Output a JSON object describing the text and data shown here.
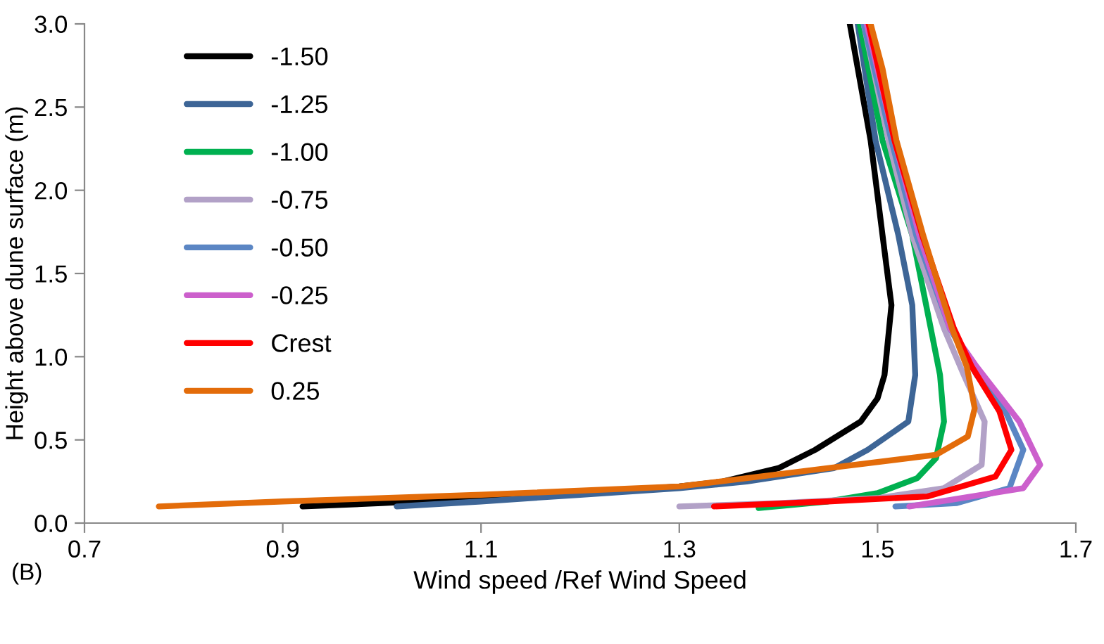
{
  "chart_data": {
    "type": "line",
    "xlabel": "Wind speed /Ref Wind Speed",
    "ylabel": "Height above dune surface (m)",
    "annotations": [
      "(B)"
    ],
    "xlim": [
      0.7,
      1.7
    ],
    "xticks": [
      0.7,
      0.9,
      1.1,
      1.3,
      1.5,
      1.7
    ],
    "ylim": [
      0,
      3
    ],
    "yticks": [
      {
        "value": 0,
        "label": "0.0"
      },
      0.5,
      {
        "value": 1,
        "label": "1.0"
      },
      1.5,
      {
        "value": 2,
        "label": "2.0"
      },
      2.5,
      {
        "value": 3,
        "label": "3.0"
      }
    ],
    "grid": false,
    "legend": "top left",
    "marker": "none",
    "line_style": "solid",
    "series": [
      {
        "name": "-1.50",
        "color": "#000000",
        "x": [
          0.92,
          1.0,
          1.1,
          1.2,
          1.3,
          1.344,
          1.4,
          1.437,
          1.483,
          1.5,
          1.507,
          1.514,
          1.505,
          1.493,
          1.472
        ],
        "values": [
          0.1,
          0.12,
          0.15,
          0.18,
          0.22,
          0.25,
          0.33,
          0.44,
          0.61,
          0.75,
          0.89,
          1.31,
          1.73,
          2.3,
          3.0
        ]
      },
      {
        "name": "-1.25",
        "color": "#3d6596",
        "x": [
          1.015,
          1.1,
          1.2,
          1.3,
          1.368,
          1.456,
          1.49,
          1.531,
          1.538,
          1.535,
          1.521,
          1.498,
          1.48
        ],
        "values": [
          0.1,
          0.13,
          0.17,
          0.21,
          0.25,
          0.33,
          0.44,
          0.61,
          0.89,
          1.31,
          1.73,
          2.3,
          3.0
        ]
      },
      {
        "name": "-1.00",
        "color": "#00b050",
        "x": [
          1.38,
          1.45,
          1.5,
          1.54,
          1.559,
          1.567,
          1.563,
          1.549,
          1.535,
          1.505,
          1.482
        ],
        "values": [
          0.09,
          0.13,
          0.18,
          0.27,
          0.39,
          0.61,
          0.89,
          1.31,
          1.73,
          2.3,
          3.0
        ]
      },
      {
        "name": "-0.75",
        "color": "#b2a1c7",
        "x": [
          1.3,
          1.4,
          1.5,
          1.567,
          1.605,
          1.608,
          1.587,
          1.567,
          1.535,
          1.511,
          1.486
        ],
        "values": [
          0.1,
          0.12,
          0.15,
          0.21,
          0.35,
          0.61,
          0.89,
          1.17,
          1.73,
          2.3,
          3.0
        ]
      },
      {
        "name": "-0.50",
        "color": "#5b86c4",
        "x": [
          1.518,
          1.58,
          1.633,
          1.647,
          1.629,
          1.6,
          1.573,
          1.539,
          1.514,
          1.486
        ],
        "values": [
          0.1,
          0.12,
          0.21,
          0.44,
          0.67,
          0.89,
          1.17,
          1.73,
          2.3,
          3.0
        ]
      },
      {
        "name": "-0.25",
        "color": "#cc5fcc",
        "x": [
          1.532,
          1.647,
          1.664,
          1.643,
          1.6,
          1.573,
          1.542,
          1.517,
          1.489
        ],
        "values": [
          0.1,
          0.21,
          0.35,
          0.61,
          0.94,
          1.17,
          1.73,
          2.3,
          3.0
        ]
      },
      {
        "name": "Crest",
        "color": "#ff0000",
        "x": [
          1.335,
          1.45,
          1.55,
          1.619,
          1.635,
          1.623,
          1.595,
          1.577,
          1.545,
          1.517,
          1.491
        ],
        "values": [
          0.1,
          0.13,
          0.16,
          0.28,
          0.44,
          0.67,
          0.94,
          1.17,
          1.73,
          2.3,
          3.0
        ]
      },
      {
        "name": "0.25",
        "color": "#e36c0a",
        "x": [
          0.775,
          0.9,
          1.1,
          1.3,
          1.559,
          1.591,
          1.598,
          1.59,
          1.575,
          1.546,
          1.519,
          1.505,
          1.493
        ],
        "values": [
          0.1,
          0.13,
          0.17,
          0.22,
          0.41,
          0.52,
          0.69,
          0.94,
          1.17,
          1.73,
          2.3,
          2.73,
          3.0
        ]
      }
    ]
  }
}
